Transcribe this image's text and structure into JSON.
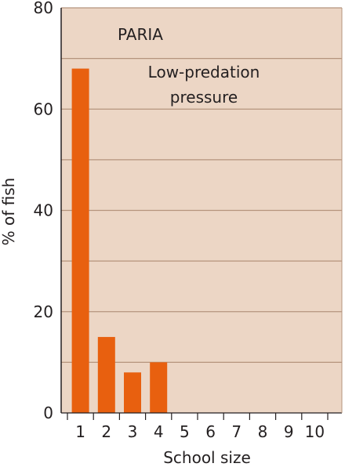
{
  "chart_data": {
    "type": "bar",
    "panel_label": "PARIA",
    "annotation": [
      "Low-predation",
      "pressure"
    ],
    "xlabel": "School size",
    "ylabel": "% of fish",
    "categories": [
      "1",
      "2",
      "3",
      "4",
      "5",
      "6",
      "7",
      "8",
      "9",
      "10"
    ],
    "values": [
      68,
      15,
      8,
      10,
      0,
      0,
      0,
      0,
      0,
      0
    ],
    "ylim": [
      0,
      80
    ],
    "yticks": [
      0,
      20,
      40,
      60,
      80
    ],
    "grid_step": 10,
    "grid": true,
    "colors": {
      "bar": "#e8600f",
      "panel": "#ecd6c5",
      "grid": "#b5947d",
      "axis": "#231f20"
    }
  }
}
